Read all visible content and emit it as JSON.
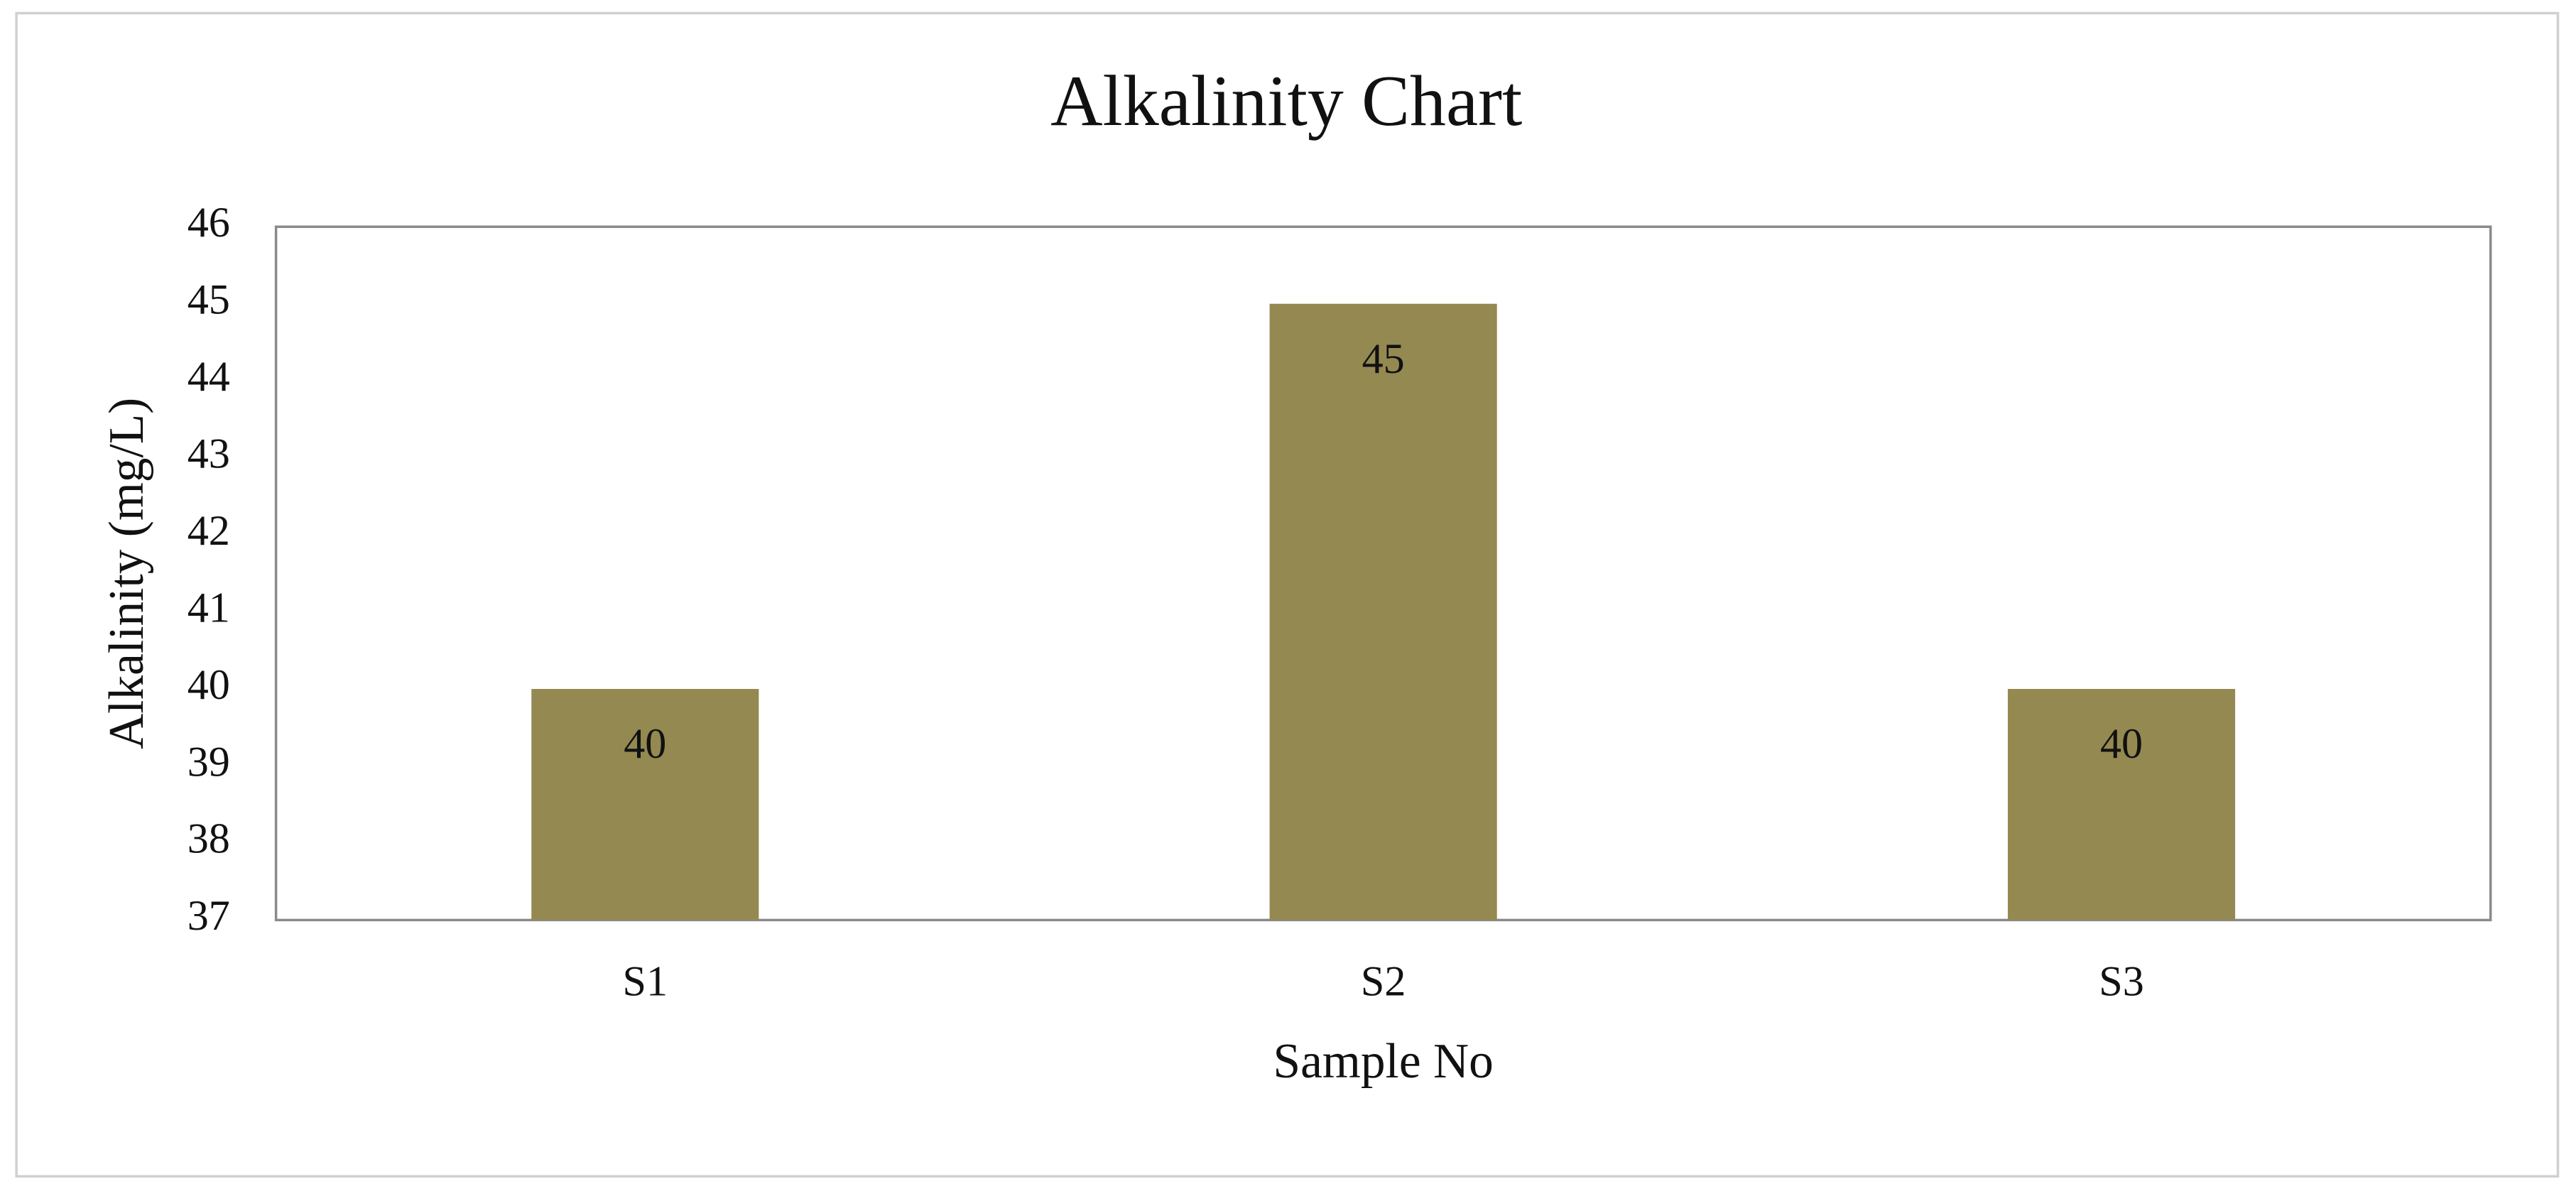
{
  "chart_data": {
    "type": "bar",
    "title": "Alkalinity Chart",
    "x_label": "Sample No",
    "y_label": "Alkalinity (mg/L)",
    "categories": [
      "S1",
      "S2",
      "S3"
    ],
    "values": [
      40,
      45,
      40
    ],
    "color": "#958952",
    "ylim": [
      37,
      46
    ],
    "yticks": [
      37,
      38,
      39,
      40,
      41,
      42,
      43,
      44,
      45,
      46
    ]
  }
}
